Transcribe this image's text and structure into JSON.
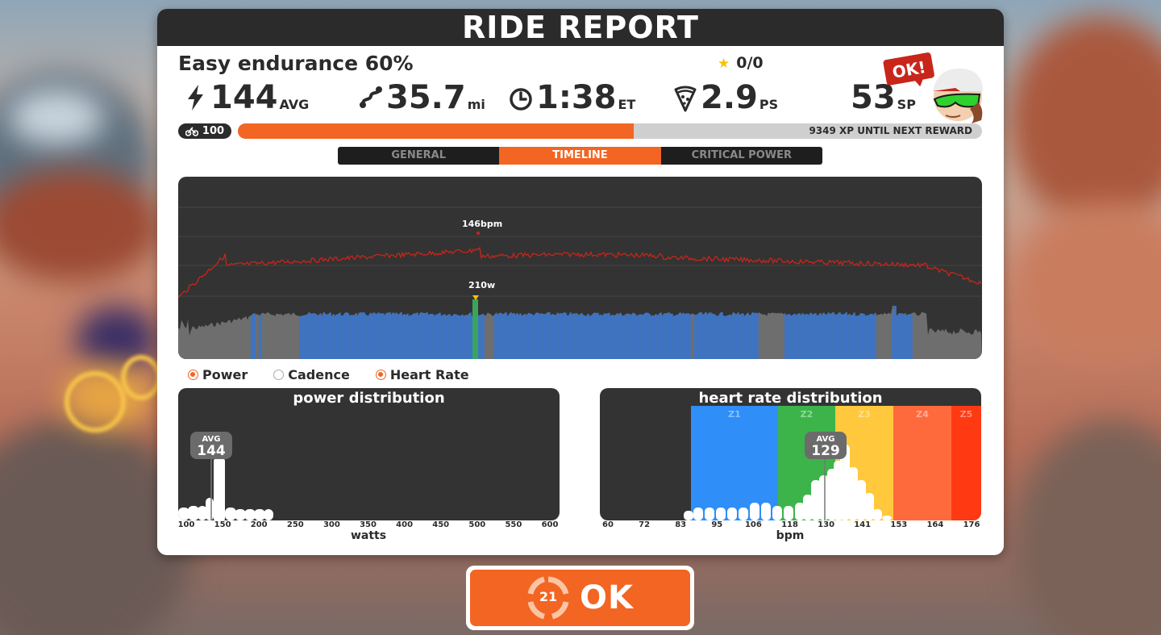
{
  "header": {
    "title": "RIDE REPORT"
  },
  "workout": {
    "name": "Easy endurance 60%"
  },
  "stars": {
    "value": "0/0"
  },
  "stats": {
    "power": {
      "value": "144",
      "unit": "AVG"
    },
    "distance": {
      "value": "35.7",
      "unit": "mi"
    },
    "time": {
      "value": "1:38",
      "unit": "ET"
    },
    "pizza": {
      "value": "2.9",
      "unit": "PS"
    },
    "sport": {
      "value": "53",
      "unit": "SP"
    }
  },
  "avatar": {
    "bubble": "OK!"
  },
  "level": {
    "value": "100"
  },
  "xp": {
    "text": "9349 XP UNTIL NEXT REWARD",
    "fill_fraction": 0.532
  },
  "tabs": [
    {
      "label": "GENERAL",
      "active": false
    },
    {
      "label": "TIMELINE",
      "active": true
    },
    {
      "label": "CRITICAL POWER",
      "active": false
    }
  ],
  "timeline": {
    "hr_peak_label": "146bpm",
    "power_peak_label": "210w"
  },
  "legend": [
    {
      "label": "Power",
      "checked": true
    },
    {
      "label": "Cadence",
      "checked": false
    },
    {
      "label": "Heart Rate",
      "checked": true
    }
  ],
  "power_distribution": {
    "title": "power distribution",
    "avg_label": "AVG",
    "avg_value": "144",
    "ticks": [
      "100",
      "150",
      "200",
      "250",
      "300",
      "350",
      "400",
      "450",
      "500",
      "550",
      "600"
    ],
    "xlabel": "watts"
  },
  "hr_distribution": {
    "title": "heart rate distribution",
    "avg_label": "AVG",
    "avg_value": "129",
    "zones": [
      "Z1",
      "Z2",
      "Z3",
      "Z4",
      "Z5"
    ],
    "zone_colors": [
      "#2f8ef7",
      "#3cb44a",
      "#ffc83d",
      "#ff6a3d",
      "#ff3a12"
    ],
    "ticks": [
      "60",
      "72",
      "83",
      "95",
      "106",
      "118",
      "130",
      "141",
      "153",
      "164",
      "176"
    ],
    "xlabel": "bpm"
  },
  "ok_button": {
    "label": "OK",
    "countdown": "21"
  },
  "colors": {
    "accent": "#f26522",
    "dark": "#2b2b2b",
    "power_blue": "#3a74c9"
  }
}
